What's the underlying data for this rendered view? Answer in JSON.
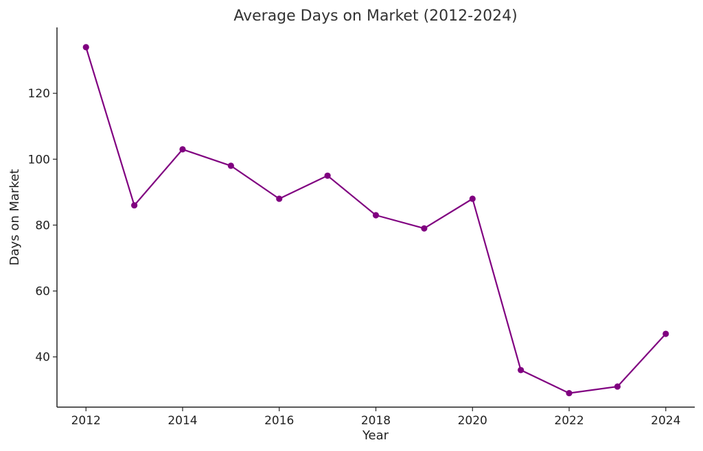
{
  "chart_data": {
    "type": "line",
    "title": "Average Days on Market (2012-2024)",
    "xlabel": "Year",
    "ylabel": "Days on Market",
    "x": [
      2012,
      2013,
      2014,
      2015,
      2016,
      2017,
      2018,
      2019,
      2020,
      2021,
      2022,
      2023,
      2024
    ],
    "series": [
      {
        "values": [
          134,
          86,
          103,
          98,
          88,
          95,
          83,
          79,
          88,
          36,
          29,
          31,
          47
        ],
        "color": "#800080",
        "marker": "circle"
      }
    ],
    "xticks": [
      2012,
      2014,
      2016,
      2018,
      2020,
      2022,
      2024
    ],
    "yticks": [
      40,
      60,
      80,
      100,
      120
    ],
    "xlim": [
      2011.4,
      2024.6
    ],
    "ylim": [
      24.75,
      140
    ],
    "grid": false
  }
}
